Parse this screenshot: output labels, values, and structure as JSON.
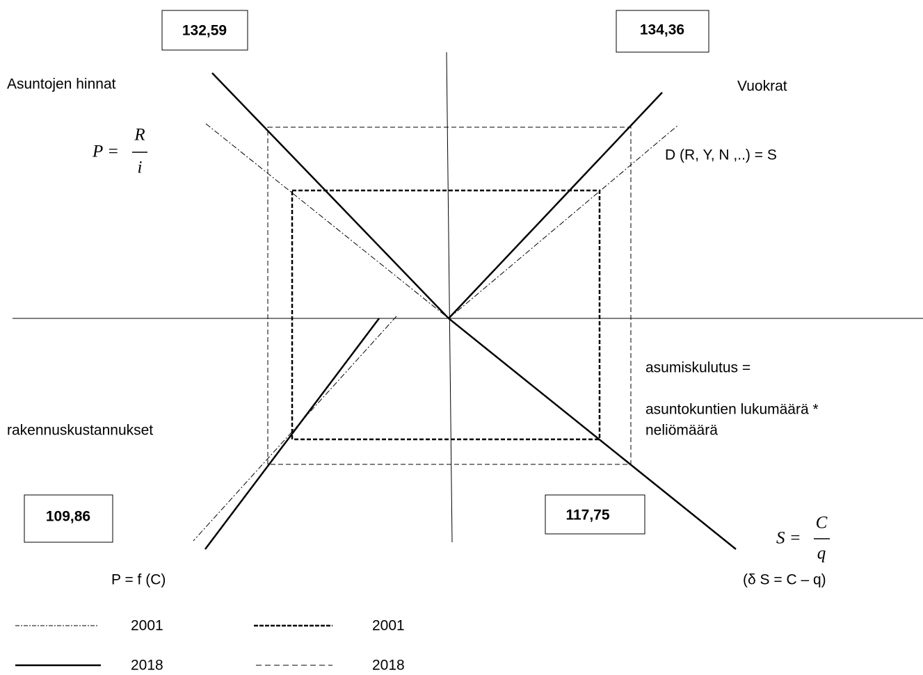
{
  "boxes": [
    "132,59",
    "134,36",
    "109,86",
    "117,75"
  ],
  "labels": {
    "prices": "Asuntojen hinnat",
    "rents": "Vuokrat",
    "costs": "rakennuskustannukset",
    "consumption_1": "asumiskulutus =",
    "consumption_2": "asuntokuntien lukumäärä *",
    "consumption_3": "neliömäärä"
  },
  "formulas": {
    "price": {
      "lhs": "P =",
      "numerator": "R",
      "denominator": "i"
    },
    "demand": "D (R, Y, N ,..) = S",
    "stock": {
      "lhs": "S =",
      "numerator": "C",
      "denominator": "q"
    },
    "price_function": "P = f (C)",
    "stock_change": "(δ S = C – q)"
  },
  "legend": [
    {
      "style": "dash-dot",
      "label": "2001"
    },
    {
      "style": "thick-dashed",
      "label": "2001"
    },
    {
      "style": "solid",
      "label": "2018"
    },
    {
      "style": "thin-dashed",
      "label": "2018"
    }
  ]
}
